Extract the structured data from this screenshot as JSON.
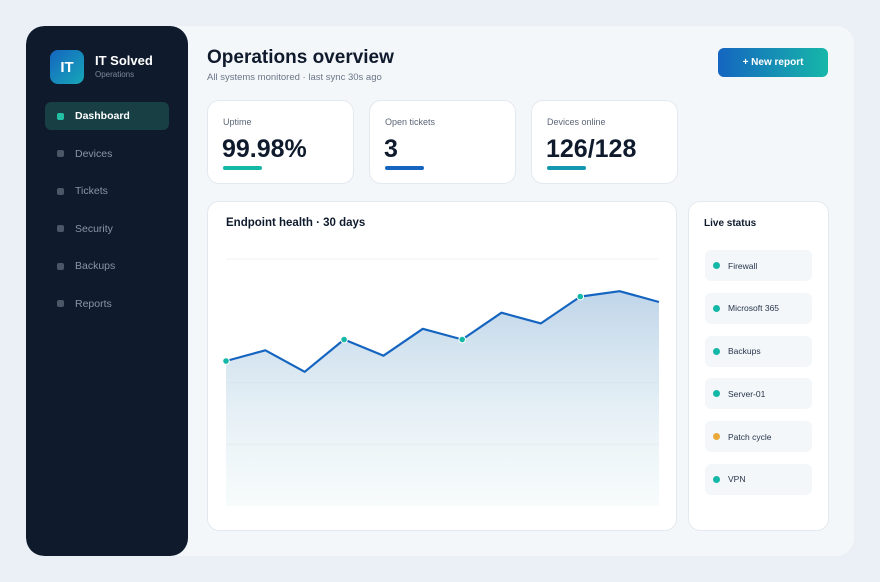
{
  "brand": {
    "logo": "IT",
    "name": "IT Solved",
    "sub": "Operations"
  },
  "nav": [
    {
      "label": "Dashboard",
      "active": true
    },
    {
      "label": "Devices",
      "active": false
    },
    {
      "label": "Tickets",
      "active": false
    },
    {
      "label": "Security",
      "active": false
    },
    {
      "label": "Backups",
      "active": false
    },
    {
      "label": "Reports",
      "active": false
    }
  ],
  "header": {
    "title": "Operations overview",
    "subtitle": "All systems monitored · last sync 30s ago",
    "new_report_label": "+ New report"
  },
  "stats": [
    {
      "label": "Uptime",
      "value": "99.98%",
      "color": "#14b8a6"
    },
    {
      "label": "Open tickets",
      "value": "3",
      "color": "#1565c0"
    },
    {
      "label": "Devices online",
      "value": "126/128",
      "color": "#1597b0"
    }
  ],
  "chart_data": {
    "type": "area",
    "title": "Endpoint health · 30 days",
    "x": [
      1,
      2,
      3,
      4,
      5,
      6,
      7,
      8,
      9,
      10,
      11,
      12
    ],
    "values": [
      82,
      84,
      80,
      86,
      83,
      88,
      86,
      91,
      89,
      94,
      95,
      93
    ],
    "markers": [
      1,
      4,
      7,
      10
    ],
    "ylim": [
      55,
      101
    ],
    "grid": true,
    "line_color": "#1565c0",
    "marker_color": "#14b8a6"
  },
  "status": {
    "title": "Live status",
    "items": [
      {
        "label": "Firewall",
        "color": "#14b8a6"
      },
      {
        "label": "Microsoft 365",
        "color": "#14b8a6"
      },
      {
        "label": "Backups",
        "color": "#14b8a6"
      },
      {
        "label": "Server-01",
        "color": "#14b8a6"
      },
      {
        "label": "Patch cycle",
        "color": "#e8a93b"
      },
      {
        "label": "VPN",
        "color": "#14b8a6"
      }
    ]
  }
}
